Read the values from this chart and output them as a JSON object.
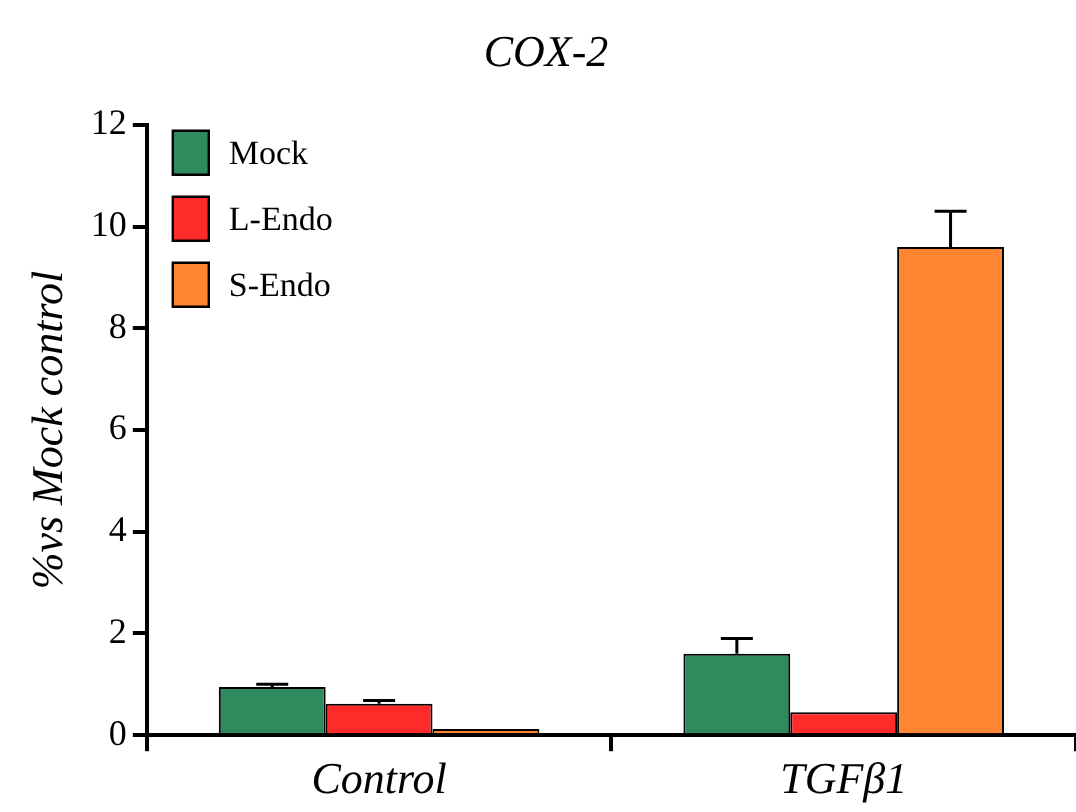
{
  "chart_data": {
    "type": "bar",
    "title": "COX-2",
    "ylabel": "%vs Mock control",
    "categories": [
      "Control",
      "TGFβ1"
    ],
    "series": [
      {
        "name": "Mock",
        "color": "#2e8b5e",
        "values": [
          0.95,
          1.6
        ],
        "errors": [
          [
            0.95,
            1.0
          ],
          [
            1.6,
            1.9
          ]
        ]
      },
      {
        "name": "L-Endo",
        "color": "#ff2a2a",
        "values": [
          0.62,
          0.45
        ],
        "errors": [
          [
            0.62,
            0.68
          ],
          null
        ]
      },
      {
        "name": "S-Endo",
        "color": "#ff8533",
        "values": [
          0.12,
          9.6
        ],
        "errors": [
          null,
          [
            9.6,
            10.3
          ]
        ]
      }
    ],
    "ylim": [
      0,
      12
    ],
    "yticks": [
      0,
      2,
      4,
      6,
      8,
      10,
      12
    ],
    "grid": false,
    "legend": "top left"
  }
}
